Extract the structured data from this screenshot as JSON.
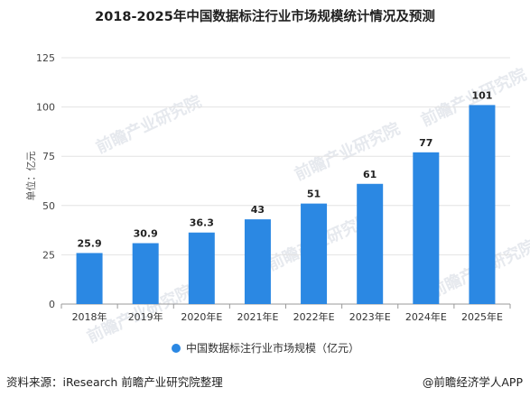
{
  "title": "2018-2025年中国数据标注行业市场规模统计情况及预测",
  "footer": {
    "source": "资料来源：iResearch 前瞻产业研究院整理",
    "brand": "@前瞻经济学人APP"
  },
  "colors": {
    "bar": "#2b88e3",
    "grid": "#e3e3e3",
    "axis": "#999999"
  },
  "chart_data": {
    "type": "bar",
    "categories": [
      "2018年",
      "2019年",
      "2020年E",
      "2021年E",
      "2022年E",
      "2023年E",
      "2024年E",
      "2025年E"
    ],
    "series": [
      {
        "name": "中国数据标注行业市场规模（亿元）",
        "values": [
          25.9,
          30.9,
          36.3,
          43,
          51,
          61,
          77,
          101
        ]
      }
    ],
    "value_labels": [
      "25.9",
      "30.9",
      "36.3",
      "43",
      "51",
      "61",
      "77",
      "101"
    ],
    "ylabel": "单位：亿元",
    "xlabel": "",
    "ylim": [
      0,
      125
    ],
    "yticks": [
      0,
      25,
      50,
      75,
      100,
      125
    ],
    "grid": true,
    "legend_position": "bottom"
  }
}
